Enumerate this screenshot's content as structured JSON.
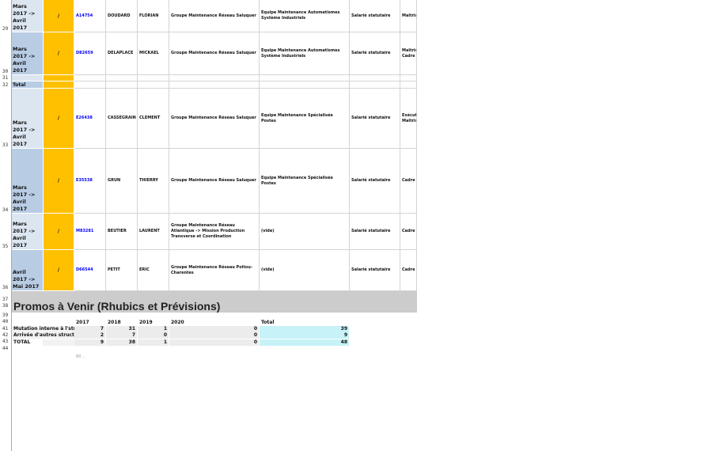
{
  "colors": {
    "accent_yellow": "#ffc000",
    "date_light": "#dce6f1",
    "date_dark": "#b8cce4",
    "total_cyan": "#c6f2f8",
    "banner": "#cccccc"
  },
  "rows": [
    {
      "num": "29",
      "date": "Mars 2017 -> Avril 2017",
      "flag": "/",
      "id": "A14754",
      "last": "DOUDARD",
      "first": "FLORIAN",
      "group": "Groupe Maintenance Réseau Saluquer",
      "team": "Equipe Maintenance Automatismes Système Industriels",
      "status": "Salarié statutaire",
      "cat": "Maîtris"
    },
    {
      "num": "30",
      "date": "Mars 2017 -> Avril 2017",
      "flag": "/",
      "id": "D82659",
      "last": "DELAPLACE",
      "first": "MICKAEL",
      "group": "Groupe Maintenance Réseau Saluquer",
      "team": "Equipe Maintenance Automatismes Système Industriels",
      "status": "Salarié statutaire",
      "cat": "Maîtris Cadre"
    },
    {
      "num": "31",
      "date": "",
      "flag": "",
      "id": "",
      "last": "",
      "first": "",
      "group": "",
      "team": "",
      "status": "",
      "cat": ""
    },
    {
      "num": "32",
      "date": "Total",
      "flag": "",
      "id": "",
      "last": "",
      "first": "",
      "group": "",
      "team": "",
      "status": "",
      "cat": ""
    },
    {
      "num": "33",
      "date": "Mars 2017 -> Avril 2017",
      "flag": "/",
      "id": "E26438",
      "last": "CASSEGRAIN",
      "first": "CLEMENT",
      "group": "Groupe Maintenance Réseau Saluquer",
      "team": "Equipe Maintenance Spécialisée Postes",
      "status": "Salarié statutaire",
      "cat": "Exécut Maîtris"
    },
    {
      "num": "34",
      "date": "Mars 2017 -> Avril 2017",
      "flag": "/",
      "id": "E35538",
      "last": "GRUN",
      "first": "THIERRY",
      "group": "Groupe Maintenance Réseau Saluquer",
      "team": "Equipe Maintenance Spécialisée Postes",
      "status": "Salarié statutaire",
      "cat": "Cadre"
    },
    {
      "num": "35",
      "date": "Mars 2017 -> Avril 2017",
      "flag": "/",
      "id": "M83281",
      "last": "BEUTIER",
      "first": "LAURENT",
      "group": "Groupe Maintenance Réseau Atlantique -> Mission Production Transverse et Coordination",
      "team": "(vide)",
      "status": "Salarié statutaire",
      "cat": "Cadre"
    },
    {
      "num": "36",
      "date": "Avril 2017 -> Mai 2017",
      "flag": "/",
      "id": "D66544",
      "last": "PETIT",
      "first": "ERIC",
      "group": "Groupe Maintenance Réseau Poitou-Charentes",
      "team": "(vide)",
      "status": "Salarié statutaire",
      "cat": "Cadre"
    }
  ],
  "extra_row_numbers": [
    "37",
    "38",
    "39",
    "40",
    "41",
    "42",
    "43",
    "44"
  ],
  "section_title": "Promos à Venir (Rhubics et Prévisions)",
  "summary": {
    "headers": [
      "2017",
      "2018",
      "2019",
      "2020",
      "Total"
    ],
    "rows": [
      {
        "label": "Mutation interne à l'str",
        "values": [
          "7",
          "31",
          "1",
          "0",
          "39"
        ]
      },
      {
        "label": "Arrivée d'autres structu",
        "values": [
          "2",
          "7",
          "0",
          "0",
          "9"
        ]
      },
      {
        "label": "TOTAL",
        "values": [
          "9",
          "38",
          "1",
          "0",
          "48"
        ]
      }
    ],
    "footnote": "80 .."
  }
}
